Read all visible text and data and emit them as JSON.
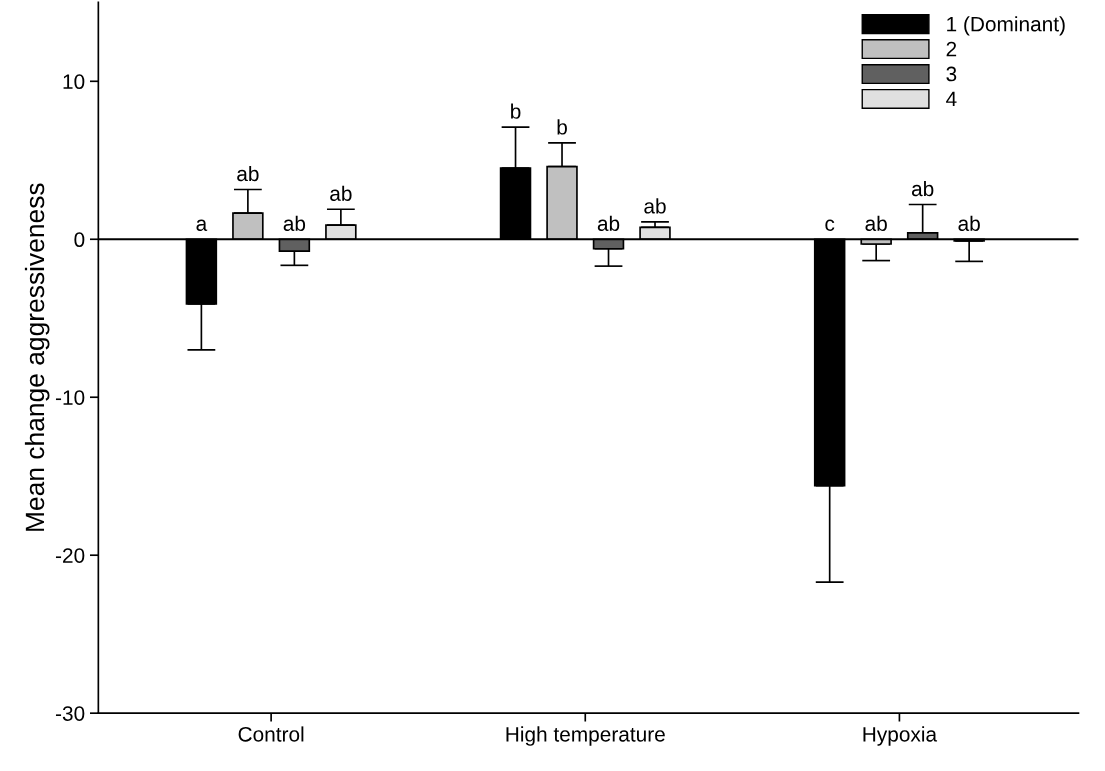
{
  "chart_data": {
    "type": "bar",
    "ylabel": "Mean change aggressiveness",
    "categories": [
      "Control",
      "High temperature",
      "Hypoxia"
    ],
    "series": [
      {
        "name": "1 (Dominant)",
        "color": "#000000",
        "values": [
          -4.1,
          4.5,
          -15.6
        ],
        "errors": [
          [
            -7.0,
            -4.1
          ],
          [
            4.5,
            7.1
          ],
          [
            -21.7,
            -15.6
          ]
        ],
        "value_labels": [
          "a",
          "b",
          "c"
        ]
      },
      {
        "name": "2",
        "color": "#c0c0c0",
        "values": [
          1.65,
          4.6,
          -0.3
        ],
        "errors": [
          [
            1.65,
            3.15
          ],
          [
            4.6,
            6.1
          ],
          [
            -1.35,
            -0.3
          ]
        ],
        "value_labels": [
          "ab",
          "b",
          "ab"
        ]
      },
      {
        "name": "3",
        "color": "#606060",
        "values": [
          -0.75,
          -0.6,
          0.4
        ],
        "errors": [
          [
            -1.65,
            -0.75
          ],
          [
            -1.7,
            -0.6
          ],
          [
            0.4,
            2.2
          ]
        ],
        "value_labels": [
          "ab",
          "ab",
          "ab"
        ]
      },
      {
        "name": "4",
        "color": "#e0e0e0",
        "values": [
          0.9,
          0.75,
          -0.1
        ],
        "errors": [
          [
            0.9,
            1.9
          ],
          [
            0.75,
            1.1
          ],
          [
            -1.4,
            -0.1
          ]
        ],
        "value_labels": [
          "ab",
          "ab",
          "ab"
        ]
      }
    ],
    "ylim": [
      -30,
      15
    ],
    "yticks": [
      -30,
      -20,
      -10,
      0,
      10
    ],
    "ref_lines": [
      {
        "axis": "y",
        "value": 0,
        "color": "#000000"
      }
    ],
    "legend": "top right",
    "grid": false
  }
}
